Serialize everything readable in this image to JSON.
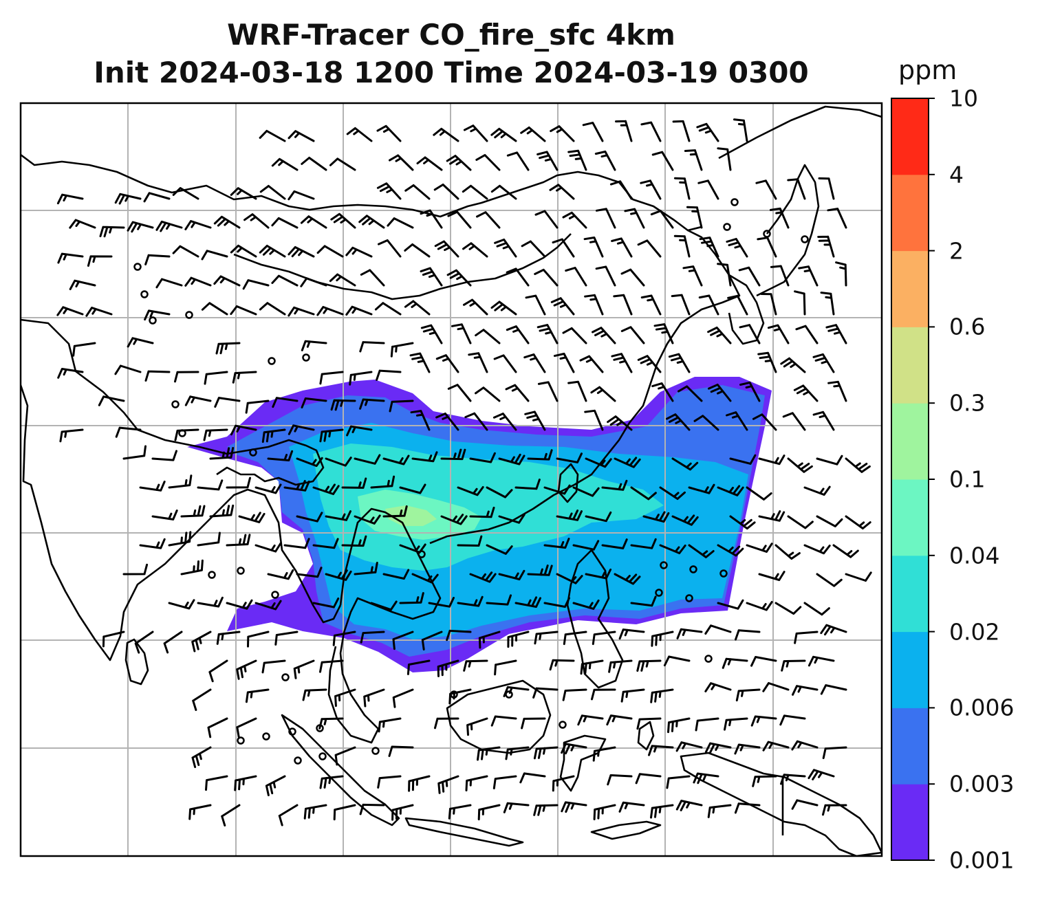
{
  "title": {
    "line1": "WRF-Tracer CO_fire_sfc 4km",
    "line2": "Init 2024-03-18 1200 Time 2024-03-19 0300"
  },
  "colorbar": {
    "units": "ppm",
    "levels": [
      {
        "label": "0.001",
        "color": "#6a2bf5"
      },
      {
        "label": "0.003",
        "color": "#3a72f0"
      },
      {
        "label": "0.006",
        "color": "#0bb1ee"
      },
      {
        "label": "0.02",
        "color": "#30dfd6"
      },
      {
        "label": "0.04",
        "color": "#6cf6c2"
      },
      {
        "label": "0.1",
        "color": "#9ff49e"
      },
      {
        "label": "0.3",
        "color": "#d0e187"
      },
      {
        "label": "0.6",
        "color": "#fbb062"
      },
      {
        "label": "2",
        "color": "#ff733d"
      },
      {
        "label": "4",
        "color": "#ff2a17"
      },
      {
        "label": "10",
        "color": ""
      }
    ]
  },
  "map": {
    "gridlines": true,
    "gridline_color": "#b3b3b3",
    "coastline_color": "#000000",
    "wind_barb_color": "#000000"
  }
}
